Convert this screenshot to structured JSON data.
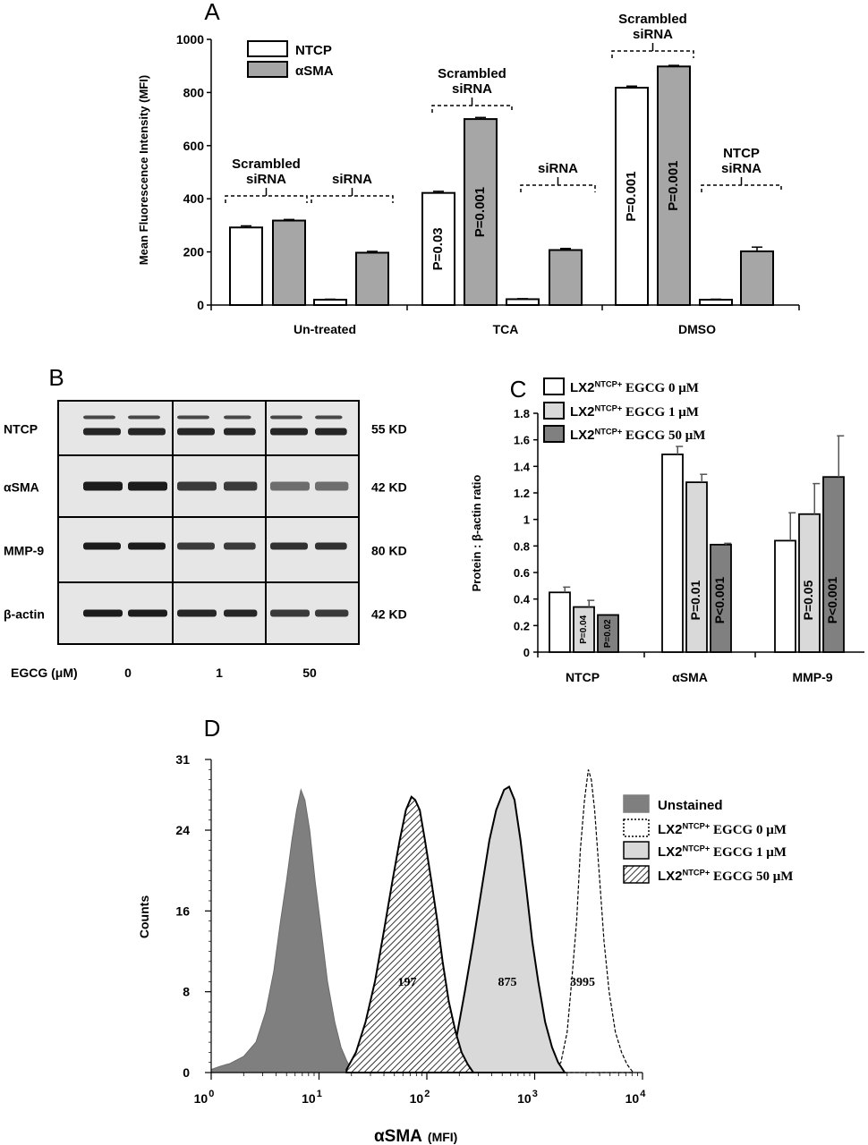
{
  "panels": {
    "A": {
      "letter": "A",
      "chart_data": {
        "type": "bar",
        "ylabel": "Mean Fluorescence Intensity (MFI)",
        "xlabel": "",
        "ylim": [
          0,
          1000
        ],
        "yticks": [
          "0",
          "200",
          "400",
          "600",
          "800",
          "1000"
        ],
        "legend": [
          "NTCP",
          "αSMA"
        ],
        "legend_position": "top-left",
        "groups": [
          "Un-treated",
          "TCA",
          "DMSO"
        ],
        "series": [
          {
            "name": "NTCP",
            "color": "#ffffff"
          },
          {
            "name": "αSMA",
            "color": "#a6a6a6"
          }
        ],
        "bars": [
          {
            "group": "Un-treated",
            "series": "NTCP",
            "value": 292,
            "err": 6,
            "label": ""
          },
          {
            "group": "Un-treated",
            "series": "αSMA",
            "value": 318,
            "err": 4,
            "label": ""
          },
          {
            "group": "Un-treated",
            "series": "NTCP",
            "value": 20,
            "err": 2,
            "label": ""
          },
          {
            "group": "Un-treated",
            "series": "αSMA",
            "value": 197,
            "err": 5,
            "label": ""
          },
          {
            "group": "TCA",
            "series": "NTCP",
            "value": 422,
            "err": 6,
            "label": "P=0.03"
          },
          {
            "group": "TCA",
            "series": "αSMA",
            "value": 700,
            "err": 6,
            "label": "P=0.001"
          },
          {
            "group": "TCA",
            "series": "NTCP",
            "value": 22,
            "err": 2,
            "label": ""
          },
          {
            "group": "TCA",
            "series": "αSMA",
            "value": 207,
            "err": 6,
            "label": ""
          },
          {
            "group": "DMSO",
            "series": "NTCP",
            "value": 818,
            "err": 6,
            "label": "P=0.001"
          },
          {
            "group": "DMSO",
            "series": "αSMA",
            "value": 898,
            "err": 4,
            "label": "P=0.001"
          },
          {
            "group": "DMSO",
            "series": "NTCP",
            "value": 20,
            "err": 2,
            "label": ""
          },
          {
            "group": "DMSO",
            "series": "αSMA",
            "value": 202,
            "err": 16,
            "label": ""
          }
        ],
        "brackets": [
          {
            "label": [
              "Scrambled",
              "siRNA"
            ]
          },
          {
            "label": [
              "siRNA"
            ]
          },
          {
            "label": [
              "Scrambled",
              "siRNA"
            ]
          },
          {
            "label": [
              "siRNA"
            ]
          },
          {
            "label": [
              "Scrambled",
              "siRNA"
            ]
          },
          {
            "label": [
              "NTCP",
              "siRNA"
            ]
          }
        ]
      }
    },
    "B": {
      "letter": "B",
      "rows": [
        {
          "protein": "NTCP",
          "size": "55 KD"
        },
        {
          "protein": "αSMA",
          "size": "42 KD"
        },
        {
          "protein": "MMP-9",
          "size": "80 KD"
        },
        {
          "protein": "β-actin",
          "size": "42 KD"
        }
      ],
      "xlabel": "EGCG (μM)",
      "doses": [
        "0",
        "1",
        "50"
      ]
    },
    "C": {
      "letter": "C",
      "chart_data": {
        "type": "bar",
        "ylabel": "Protein : β-actin ratio",
        "xlabel": "",
        "ylim": [
          0,
          1.8
        ],
        "yticks": [
          "0",
          "0.2",
          "0.4",
          "0.6",
          "0.8",
          "1",
          "1.2",
          "1.4",
          "1.6",
          "1.8"
        ],
        "categories": [
          "NTCP",
          "αSMA",
          "MMP-9"
        ],
        "legend_position": "top",
        "series": [
          {
            "name": "LX2NTCP+ EGCG 0 μM",
            "name_parts": [
              "LX2",
              "NTCP+",
              " EGCG 0 μM"
            ],
            "color": "#ffffff",
            "values": [
              0.45,
              1.49,
              0.84
            ],
            "err": [
              0.04,
              0.06,
              0.21
            ],
            "labels": [
              "",
              "",
              ""
            ]
          },
          {
            "name": "LX2NTCP+ EGCG 1 μM",
            "name_parts": [
              "LX2",
              "NTCP+",
              " EGCG 1 μM"
            ],
            "color": "#d9d9d9",
            "values": [
              0.34,
              1.28,
              1.04
            ],
            "err": [
              0.05,
              0.06,
              0.23
            ],
            "labels": [
              "P=0.04",
              "P=0.01",
              "P=0.05"
            ]
          },
          {
            "name": "LX2NTCP+ EGCG 50 μM",
            "name_parts": [
              "LX2",
              "NTCP+",
              " EGCG 50 μM"
            ],
            "color": "#808080",
            "values": [
              0.28,
              0.81,
              1.32
            ],
            "err": [
              0.0,
              0.01,
              0.31
            ],
            "labels": [
              "P=0.02",
              "P<0.001",
              "P<0.001"
            ]
          }
        ]
      }
    },
    "D": {
      "letter": "D",
      "chart_data": {
        "type": "area",
        "ylabel": "Counts",
        "xlabel": "αSMA",
        "xlabel_unit": "(MFI)",
        "xscale": "log",
        "xlim": [
          1,
          10000
        ],
        "ylim": [
          0,
          31
        ],
        "yticks": [
          "0",
          "8",
          "16",
          "24",
          "31"
        ],
        "xticks": [
          {
            "base": "10",
            "exp": "0"
          },
          {
            "base": "10",
            "exp": "1"
          },
          {
            "base": "10",
            "exp": "2"
          },
          {
            "base": "10",
            "exp": "3"
          },
          {
            "base": "10",
            "exp": "4"
          }
        ],
        "legend_position": "right",
        "series": [
          {
            "name": "Unstained",
            "style": "solid dark gray",
            "peak_x": 7,
            "peak_y": 28,
            "annotation": ""
          },
          {
            "name": "LX2NTCP+ EGCG 0 μM",
            "name_parts": [
              "LX2",
              "NTCP+",
              " EGCG 0 μM"
            ],
            "style": "dashed outline",
            "peak_x": 3000,
            "peak_y": 30,
            "annotation": "3995"
          },
          {
            "name": "LX2NTCP+ EGCG 1 μM",
            "name_parts": [
              "LX2",
              "NTCP+",
              " EGCG 1 μM"
            ],
            "style": "light gray fill",
            "peak_x": 600,
            "peak_y": 28,
            "annotation": "875"
          },
          {
            "name": "LX2NTCP+ EGCG 50 μM",
            "name_parts": [
              "LX2",
              "NTCP+",
              " EGCG 50 μM"
            ],
            "style": "hatched",
            "peak_x": 80,
            "peak_y": 27,
            "annotation": "197"
          }
        ]
      }
    }
  }
}
